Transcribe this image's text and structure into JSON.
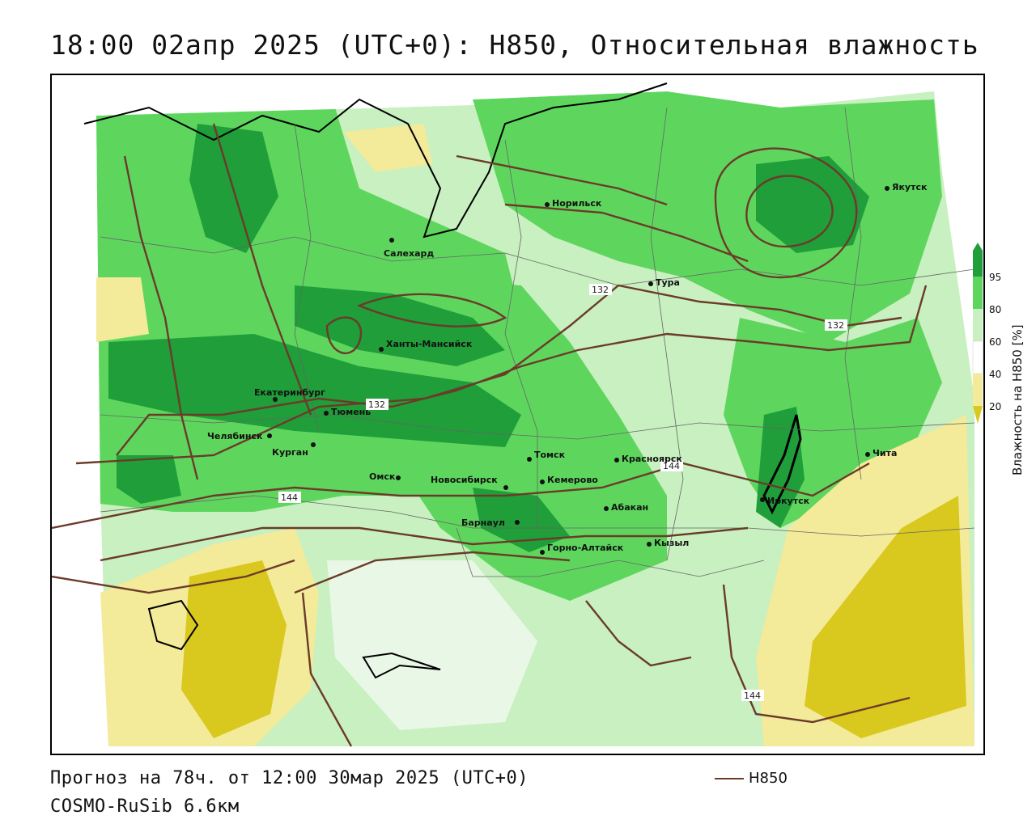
{
  "title": "18:00 02апр 2025 (UTC+0): H850, Относительная влажность",
  "footer": {
    "forecast": "Прогноз на 78ч. от 12:00 30мар 2025 (UTC+0)",
    "model": "COSMO-RuSib 6.6км"
  },
  "legend": {
    "line_label": "H850",
    "line_color": "#6b3b2a"
  },
  "colorbar": {
    "label": "Влажность на H850 [%]",
    "ticks": [
      "95",
      "80",
      "60",
      "40",
      "20"
    ],
    "colors": {
      "very_dry": "#d9c81e",
      "dry": "#f3ea9a",
      "neutral": "#ffffff",
      "light_green": "#c8f0c0",
      "green": "#5ed65e",
      "dark_green": "#1f9e3a"
    }
  },
  "contour_labels": [
    "132",
    "132",
    "132",
    "144",
    "144",
    "144"
  ],
  "cities": [
    {
      "name": "Норильск"
    },
    {
      "name": "Салехард"
    },
    {
      "name": "Тура"
    },
    {
      "name": "Якутск"
    },
    {
      "name": "Ханты-Мансийск"
    },
    {
      "name": "Екатеринбург"
    },
    {
      "name": "Тюмень"
    },
    {
      "name": "Челябинск"
    },
    {
      "name": "Курган"
    },
    {
      "name": "Томск"
    },
    {
      "name": "Красноярск"
    },
    {
      "name": "Омск"
    },
    {
      "name": "Новосибирск"
    },
    {
      "name": "Кемерово"
    },
    {
      "name": "Абакан"
    },
    {
      "name": "Барнаул"
    },
    {
      "name": "Иркутск"
    },
    {
      "name": "Чита"
    },
    {
      "name": "Кызыл"
    },
    {
      "name": "Горно-Алтайск"
    }
  ]
}
